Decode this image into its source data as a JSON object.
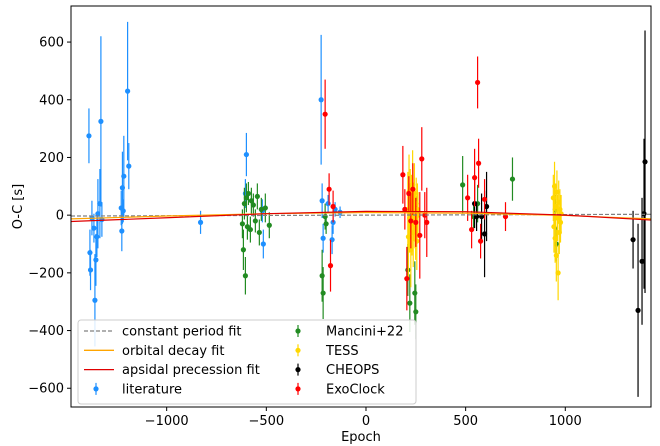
{
  "chart_data": {
    "type": "scatter",
    "xlabel": "Epoch",
    "ylabel": "O-C [s]",
    "xlim": [
      -1480,
      1430
    ],
    "ylim": [
      -665,
      725
    ],
    "xticks": [
      -1000,
      -500,
      0,
      500,
      1000
    ],
    "yticks": [
      -600,
      -400,
      -200,
      0,
      200,
      400,
      600
    ],
    "tick_labels_x": [
      "−1000",
      "−500",
      "0",
      "500",
      "1000"
    ],
    "tick_labels_y": [
      "−600",
      "−400",
      "−200",
      "0",
      "200",
      "400",
      "600"
    ],
    "legend_position": "lower-left",
    "grid": false,
    "lines": [
      {
        "name": "constant period fit",
        "color": "#808080",
        "style": "dashed",
        "x": [
          -1480,
          1430
        ],
        "y": [
          -3,
          3
        ]
      },
      {
        "name": "orbital decay fit",
        "color": "#FFA500",
        "style": "solid",
        "x": [
          -1480,
          -1000,
          -500,
          0,
          500,
          1000,
          1430
        ],
        "y": [
          -13,
          -3,
          5,
          9,
          7,
          -1,
          -13
        ]
      },
      {
        "name": "apsidal precession fit",
        "color": "#E00000",
        "style": "solid",
        "x": [
          -1480,
          -1000,
          -500,
          0,
          500,
          1000,
          1430
        ],
        "y": [
          -22,
          -9,
          5,
          13,
          12,
          0,
          -17
        ]
      }
    ],
    "series": [
      {
        "name": "literature",
        "color": "#1E90FF",
        "points": [
          [
            -1390,
            275,
            95
          ],
          [
            -1385,
            -130,
            80
          ],
          [
            -1382,
            -190,
            70
          ],
          [
            -1375,
            -10,
            60
          ],
          [
            -1365,
            -45,
            50
          ],
          [
            -1360,
            -295,
            160
          ],
          [
            -1355,
            -155,
            90
          ],
          [
            -1350,
            -75,
            70
          ],
          [
            -1345,
            5,
            120
          ],
          [
            -1335,
            40,
            120
          ],
          [
            -1330,
            325,
            295
          ],
          [
            -1325,
            -15,
            60
          ],
          [
            -1228,
            25,
            60
          ],
          [
            -1225,
            -55,
            70
          ],
          [
            -1222,
            95,
            125
          ],
          [
            -1218,
            15,
            40
          ],
          [
            -1215,
            135,
            140
          ],
          [
            -1196,
            430,
            240
          ],
          [
            -1190,
            170,
            80
          ],
          [
            -830,
            -25,
            40
          ],
          [
            -600,
            210,
            75
          ],
          [
            -605,
            75,
            50
          ],
          [
            -520,
            15,
            40
          ],
          [
            -515,
            -100,
            50
          ],
          [
            -225,
            400,
            225
          ],
          [
            -220,
            50,
            60
          ],
          [
            -215,
            -80,
            50
          ],
          [
            -190,
            40,
            30
          ],
          [
            -170,
            -85,
            50
          ],
          [
            -165,
            -25,
            40
          ],
          [
            -155,
            20,
            25
          ],
          [
            -130,
            10,
            20
          ]
        ]
      },
      {
        "name": "Mancini+22",
        "color": "#228B22",
        "points": [
          [
            -620,
            -30,
            50
          ],
          [
            -615,
            -120,
            70
          ],
          [
            -610,
            40,
            55
          ],
          [
            -605,
            -210,
            65
          ],
          [
            -600,
            60,
            50
          ],
          [
            -595,
            -40,
            45
          ],
          [
            -590,
            75,
            40
          ],
          [
            -580,
            -50,
            45
          ],
          [
            -575,
            50,
            45
          ],
          [
            -565,
            35,
            40
          ],
          [
            -555,
            -20,
            40
          ],
          [
            -545,
            65,
            45
          ],
          [
            -535,
            -60,
            45
          ],
          [
            -525,
            20,
            40
          ],
          [
            -505,
            25,
            50
          ],
          [
            -485,
            -35,
            45
          ],
          [
            -220,
            -210,
            90
          ],
          [
            -215,
            -270,
            90
          ],
          [
            -205,
            -5,
            45
          ],
          [
            -200,
            -30,
            35
          ],
          [
            210,
            -190,
            90
          ],
          [
            220,
            -305,
            100
          ],
          [
            225,
            35,
            45
          ],
          [
            245,
            -270,
            110
          ],
          [
            250,
            -335,
            95
          ],
          [
            255,
            15,
            50
          ],
          [
            485,
            105,
            100
          ],
          [
            540,
            -5,
            40
          ],
          [
            560,
            40,
            65
          ],
          [
            735,
            125,
            75
          ],
          [
            950,
            20,
            50
          ],
          [
            955,
            -100,
            60
          ]
        ]
      },
      {
        "name": "TESS",
        "color": "#FFD700",
        "points": [
          [
            210,
            20,
            130
          ],
          [
            213,
            -75,
            140
          ],
          [
            216,
            80,
            130
          ],
          [
            219,
            -10,
            120
          ],
          [
            222,
            50,
            110
          ],
          [
            225,
            -120,
            130
          ],
          [
            228,
            30,
            110
          ],
          [
            231,
            -30,
            110
          ],
          [
            234,
            105,
            120
          ],
          [
            237,
            -60,
            120
          ],
          [
            240,
            10,
            100
          ],
          [
            243,
            75,
            105
          ],
          [
            246,
            -15,
            100
          ],
          [
            249,
            -45,
            110
          ],
          [
            252,
            40,
            90
          ],
          [
            255,
            -90,
            100
          ],
          [
            258,
            20,
            90
          ],
          [
            261,
            0,
            80
          ],
          [
            940,
            60,
            80
          ],
          [
            943,
            -40,
            90
          ],
          [
            946,
            100,
            85
          ],
          [
            949,
            -80,
            85
          ],
          [
            952,
            30,
            80
          ],
          [
            955,
            -140,
            90
          ],
          [
            958,
            80,
            75
          ],
          [
            961,
            -10,
            80
          ],
          [
            964,
            -200,
            95
          ],
          [
            967,
            45,
            75
          ],
          [
            970,
            -60,
            75
          ],
          [
            973,
            20,
            70
          ],
          [
            976,
            -25,
            70
          ],
          [
            979,
            5,
            65
          ]
        ]
      },
      {
        "name": "CHEOPS",
        "color": "#000000",
        "points": [
          [
            545,
            40,
            85
          ],
          [
            555,
            -5,
            50
          ],
          [
            580,
            -5,
            80
          ],
          [
            595,
            -65,
            150
          ],
          [
            605,
            30,
            120
          ],
          [
            1340,
            -85,
            100
          ],
          [
            1365,
            -330,
            300
          ],
          [
            1385,
            -160,
            220
          ],
          [
            1395,
            5,
            260
          ],
          [
            1400,
            185,
            455
          ]
        ]
      },
      {
        "name": "ExoClock",
        "color": "#FF0000",
        "points": [
          [
            -205,
            350,
            120
          ],
          [
            -185,
            90,
            55
          ],
          [
            -178,
            -175,
            90
          ],
          [
            -165,
            30,
            55
          ],
          [
            185,
            140,
            100
          ],
          [
            195,
            20,
            70
          ],
          [
            205,
            -220,
            110
          ],
          [
            215,
            75,
            60
          ],
          [
            225,
            -20,
            95
          ],
          [
            235,
            90,
            90
          ],
          [
            250,
            -25,
            85
          ],
          [
            270,
            -70,
            150
          ],
          [
            280,
            195,
            110
          ],
          [
            295,
            0,
            80
          ],
          [
            305,
            -25,
            120
          ],
          [
            510,
            60,
            80
          ],
          [
            530,
            -50,
            65
          ],
          [
            545,
            130,
            100
          ],
          [
            560,
            460,
            90
          ],
          [
            565,
            180,
            85
          ],
          [
            575,
            -90,
            60
          ],
          [
            595,
            55,
            70
          ],
          [
            700,
            -5,
            50
          ]
        ]
      }
    ],
    "legend_entries": [
      {
        "label": "constant period fit",
        "kind": "line",
        "color": "#808080",
        "style": "dashed"
      },
      {
        "label": "orbital decay fit",
        "kind": "line",
        "color": "#FFA500",
        "style": "solid"
      },
      {
        "label": "apsidal precession fit",
        "kind": "line",
        "color": "#E00000",
        "style": "solid"
      },
      {
        "label": "literature",
        "kind": "errorbar",
        "color": "#1E90FF"
      },
      {
        "label": "Mancini+22",
        "kind": "errorbar",
        "color": "#228B22"
      },
      {
        "label": "TESS",
        "kind": "errorbar",
        "color": "#FFD700"
      },
      {
        "label": "CHEOPS",
        "kind": "errorbar",
        "color": "#000000"
      },
      {
        "label": "ExoClock",
        "kind": "errorbar",
        "color": "#FF0000"
      }
    ]
  }
}
